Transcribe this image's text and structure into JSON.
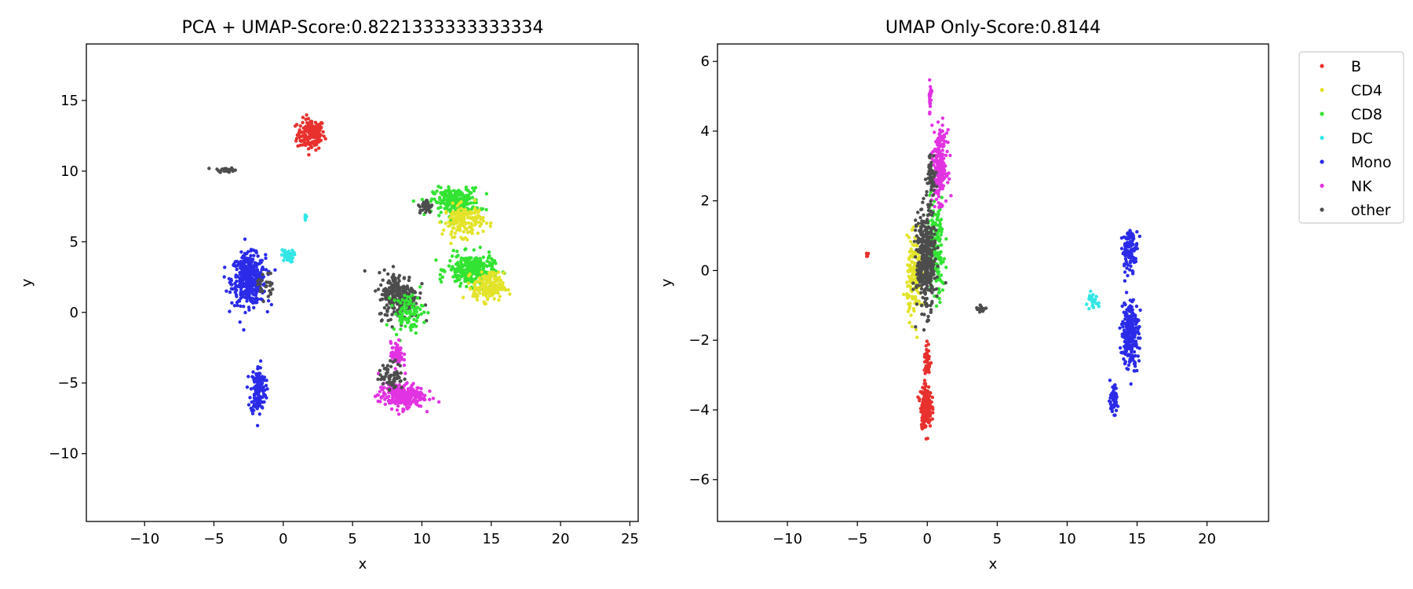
{
  "chart_data": [
    {
      "type": "scatter",
      "title": "PCA + UMAP-Score:0.8221333333333334",
      "xlabel": "x",
      "ylabel": "y",
      "xlim": [
        -14.2,
        25.6
      ],
      "ylim": [
        -14.8,
        19.0
      ],
      "xticks": [
        -10,
        -5,
        0,
        5,
        10,
        15,
        20,
        25
      ],
      "xtick_labels": [
        "−10",
        "−5",
        "0",
        "5",
        "10",
        "15",
        "20",
        "25"
      ],
      "yticks": [
        -10,
        -5,
        0,
        5,
        10,
        15
      ],
      "ytick_labels": [
        "−10",
        "−5",
        "0",
        "5",
        "10",
        "15"
      ],
      "grid": false,
      "clusters": [
        {
          "category": "B",
          "center": [
            2.0,
            12.6
          ],
          "spread": [
            0.9,
            1.0
          ],
          "points": 160
        },
        {
          "category": "other",
          "center": [
            -4.2,
            10.1
          ],
          "spread": [
            0.6,
            0.15
          ],
          "points": 30
        },
        {
          "category": "Mono",
          "center": [
            -2.5,
            2.3
          ],
          "spread": [
            1.1,
            1.6
          ],
          "points": 420
        },
        {
          "category": "Mono",
          "center": [
            -1.8,
            -5.5
          ],
          "spread": [
            0.5,
            1.6
          ],
          "points": 150
        },
        {
          "category": "DC",
          "center": [
            0.3,
            4.0
          ],
          "spread": [
            0.4,
            0.4
          ],
          "points": 40
        },
        {
          "category": "DC",
          "center": [
            1.6,
            6.7
          ],
          "spread": [
            0.1,
            0.2
          ],
          "points": 6
        },
        {
          "category": "other",
          "center": [
            -1.3,
            2.0
          ],
          "spread": [
            0.5,
            1.0
          ],
          "points": 25
        },
        {
          "category": "CD8",
          "center": [
            12.5,
            7.8
          ],
          "spread": [
            1.5,
            0.9
          ],
          "points": 260
        },
        {
          "category": "CD4",
          "center": [
            13.0,
            6.5
          ],
          "spread": [
            1.3,
            1.0
          ],
          "points": 160
        },
        {
          "category": "CD8",
          "center": [
            13.5,
            3.0
          ],
          "spread": [
            1.5,
            1.0
          ],
          "points": 260
        },
        {
          "category": "CD4",
          "center": [
            14.8,
            1.8
          ],
          "spread": [
            1.0,
            0.9
          ],
          "points": 180
        },
        {
          "category": "other",
          "center": [
            8.3,
            1.2
          ],
          "spread": [
            1.3,
            1.5
          ],
          "points": 240
        },
        {
          "category": "CD8",
          "center": [
            9.0,
            0.0
          ],
          "spread": [
            1.0,
            1.2
          ],
          "points": 90
        },
        {
          "category": "other",
          "center": [
            10.3,
            7.5
          ],
          "spread": [
            0.4,
            0.5
          ],
          "points": 30
        },
        {
          "category": "NK",
          "center": [
            8.5,
            -5.9
          ],
          "spread": [
            1.5,
            0.8
          ],
          "points": 260
        },
        {
          "category": "NK",
          "center": [
            8.2,
            -3.0
          ],
          "spread": [
            0.4,
            0.8
          ],
          "points": 60
        },
        {
          "category": "other",
          "center": [
            7.8,
            -4.5
          ],
          "spread": [
            0.8,
            0.9
          ],
          "points": 70
        }
      ]
    },
    {
      "type": "scatter",
      "title": "UMAP Only-Score:0.8144",
      "xlabel": "x",
      "ylabel": "y",
      "xlim": [
        -15.0,
        24.4
      ],
      "ylim": [
        -7.2,
        6.5
      ],
      "xticks": [
        -10,
        -5,
        0,
        5,
        10,
        15,
        20
      ],
      "xtick_labels": [
        "−10",
        "−5",
        "0",
        "5",
        "10",
        "15",
        "20"
      ],
      "yticks": [
        -6,
        -4,
        -2,
        0,
        2,
        4,
        6
      ],
      "ytick_labels": [
        "−6",
        "−4",
        "−2",
        "0",
        "2",
        "4",
        "6"
      ],
      "grid": false,
      "clusters": [
        {
          "category": "B",
          "center": [
            -0.1,
            -3.9
          ],
          "spread": [
            0.35,
            0.55
          ],
          "points": 200
        },
        {
          "category": "B",
          "center": [
            0.0,
            -2.6
          ],
          "spread": [
            0.2,
            0.5
          ],
          "points": 40
        },
        {
          "category": "CD4",
          "center": [
            -0.9,
            -0.2
          ],
          "spread": [
            0.5,
            1.0
          ],
          "points": 160
        },
        {
          "category": "CD8",
          "center": [
            0.6,
            0.6
          ],
          "spread": [
            0.6,
            1.4
          ],
          "points": 160
        },
        {
          "category": "NK",
          "center": [
            0.9,
            3.0
          ],
          "spread": [
            0.45,
            0.9
          ],
          "points": 220
        },
        {
          "category": "NK",
          "center": [
            0.2,
            5.0
          ],
          "spread": [
            0.1,
            0.5
          ],
          "points": 25
        },
        {
          "category": "other",
          "center": [
            -0.1,
            0.3
          ],
          "spread": [
            0.6,
            1.3
          ],
          "points": 380
        },
        {
          "category": "other",
          "center": [
            0.3,
            2.8
          ],
          "spread": [
            0.3,
            0.5
          ],
          "points": 50
        },
        {
          "category": "other",
          "center": [
            3.8,
            -1.1
          ],
          "spread": [
            0.3,
            0.1
          ],
          "points": 20
        },
        {
          "category": "B",
          "center": [
            -4.3,
            0.45
          ],
          "spread": [
            0.1,
            0.05
          ],
          "points": 6
        },
        {
          "category": "Mono",
          "center": [
            14.5,
            0.6
          ],
          "spread": [
            0.5,
            0.5
          ],
          "points": 110
        },
        {
          "category": "Mono",
          "center": [
            14.5,
            -1.8
          ],
          "spread": [
            0.55,
            0.9
          ],
          "points": 260
        },
        {
          "category": "Mono",
          "center": [
            13.3,
            -3.7
          ],
          "spread": [
            0.3,
            0.35
          ],
          "points": 50
        },
        {
          "category": "DC",
          "center": [
            11.8,
            -0.9
          ],
          "spread": [
            0.4,
            0.2
          ],
          "points": 30
        }
      ]
    }
  ],
  "legend": {
    "placement": "outside-right",
    "items": [
      {
        "label": "B",
        "color": "#e8312e"
      },
      {
        "label": "CD4",
        "color": "#e3e32a"
      },
      {
        "label": "CD8",
        "color": "#33e333"
      },
      {
        "label": "DC",
        "color": "#33e6e6"
      },
      {
        "label": "Mono",
        "color": "#2b2be8"
      },
      {
        "label": "NK",
        "color": "#e233e2"
      },
      {
        "label": "other",
        "color": "#4d4d4d"
      }
    ]
  }
}
